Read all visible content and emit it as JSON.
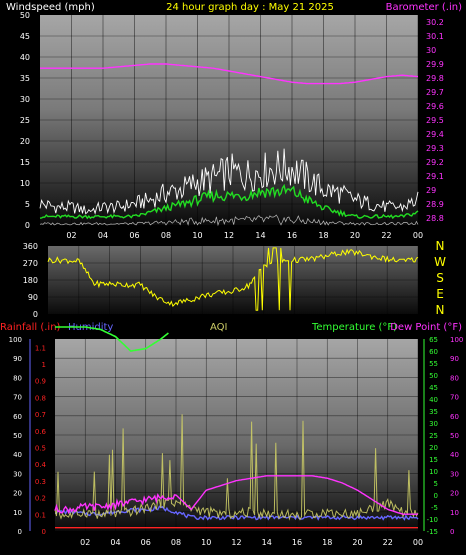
{
  "title": "24 hour graph day : May 21 2025",
  "colors": {
    "background": "#000000",
    "wind_axis": "#ffffff",
    "barometer": "#ff33ff",
    "direction": "#ffff00",
    "rainfall": "#ff2222",
    "humidity": "#6666ff",
    "aqi": "#cccc66",
    "temperature": "#33ff33",
    "dew_point": "#ff33ff",
    "gust": "#ffffff",
    "avg_wind": "#22dd22"
  },
  "chart_data": [
    {
      "type": "line",
      "name": "wind-barometer",
      "left_axis_label": "Windspeed (mph)",
      "right_axis_label": "Barometer (.in)",
      "left_ticks": [
        "50",
        "45",
        "40",
        "35",
        "30",
        "25",
        "20",
        "15",
        "10",
        "5",
        "0"
      ],
      "right_ticks": [
        "30.2",
        "30.1",
        "30",
        "29.9",
        "29.8",
        "29.7",
        "29.6",
        "29.5",
        "29.4",
        "29.3",
        "29.2",
        "29.1",
        "29",
        "28.9",
        "28.8"
      ],
      "x_ticks": [
        "02",
        "04",
        "06",
        "08",
        "10",
        "12",
        "14",
        "16",
        "18",
        "20",
        "22",
        "00"
      ],
      "ylim_left": [
        0,
        50
      ],
      "ylim_right": [
        28.75,
        30.25
      ],
      "hours": [
        0,
        1,
        2,
        3,
        4,
        5,
        6,
        7,
        8,
        9,
        10,
        11,
        12,
        13,
        14,
        15,
        16,
        17,
        18,
        19,
        20,
        21,
        22,
        23,
        24
      ],
      "series": [
        {
          "name": "Barometer",
          "axis": "right",
          "values": [
            29.87,
            29.87,
            29.87,
            29.87,
            29.87,
            29.88,
            29.89,
            29.9,
            29.9,
            29.89,
            29.88,
            29.87,
            29.85,
            29.83,
            29.81,
            29.79,
            29.77,
            29.76,
            29.76,
            29.76,
            29.77,
            29.79,
            29.81,
            29.82,
            29.81
          ]
        },
        {
          "name": "Gust",
          "axis": "left",
          "values": [
            6,
            5,
            5,
            4,
            5,
            5,
            6,
            7,
            9,
            10,
            12,
            13,
            15,
            14,
            15,
            16,
            16,
            13,
            10,
            9,
            7,
            6,
            5,
            5,
            7
          ]
        },
        {
          "name": "Average",
          "axis": "left",
          "values": [
            2,
            2,
            2,
            2,
            2,
            2,
            2,
            3,
            4,
            5,
            6,
            7,
            7,
            7,
            8,
            8,
            8,
            6,
            4,
            3,
            2,
            2,
            2,
            2,
            3
          ]
        }
      ]
    },
    {
      "type": "line",
      "name": "wind-direction",
      "left_ticks": [
        "360",
        "270",
        "180",
        "90",
        "0"
      ],
      "right_ticks": [
        "N",
        "W",
        "S",
        "E",
        "N"
      ],
      "ylim": [
        0,
        360
      ],
      "hours": [
        0,
        1,
        2,
        3,
        4,
        5,
        6,
        7,
        8,
        9,
        10,
        11,
        12,
        13,
        14,
        15,
        16,
        17,
        18,
        19,
        20,
        21,
        22,
        23,
        24
      ],
      "series": [
        {
          "name": "Direction",
          "values": [
            285,
            285,
            280,
            160,
            160,
            155,
            155,
            90,
            55,
            70,
            95,
            110,
            120,
            150,
            260,
            280,
            285,
            290,
            305,
            325,
            325,
            305,
            290,
            280,
            290
          ]
        }
      ]
    },
    {
      "type": "line",
      "name": "rain-humidity-temp",
      "legend": [
        "Rainfall (.in)",
        "Humidity",
        "AQI",
        "Temperature (°F)",
        "Dew Point (°F)"
      ],
      "humidity_ticks": [
        "100",
        "90",
        "80",
        "70",
        "60",
        "50",
        "40",
        "30",
        "20",
        "10",
        "0"
      ],
      "rain_ticks": [
        "1.1",
        "1",
        "0.9",
        "0.8",
        "0.7",
        "0.6",
        "0.5",
        "0.4",
        "0.3",
        "0.2",
        "0.1",
        "0"
      ],
      "temp_ticks": [
        "65",
        "60",
        "55",
        "50",
        "45",
        "40",
        "35",
        "30",
        "25",
        "20",
        "15",
        "10",
        "5",
        "0",
        "-5",
        "-10",
        "-15"
      ],
      "aqi_ticks": [
        "100",
        "90",
        "80",
        "70",
        "60",
        "50",
        "40",
        "30",
        "20",
        "10",
        "0"
      ],
      "ylim_humidity": [
        0,
        100
      ],
      "ylim_rain": [
        0,
        1.15
      ],
      "ylim_temp": [
        -15,
        65
      ],
      "hours": [
        0,
        1,
        2,
        3,
        4,
        5,
        6,
        7,
        8,
        9,
        10,
        11,
        12,
        13,
        14,
        15,
        16,
        17,
        18,
        19,
        20,
        21,
        22,
        23,
        24
      ],
      "series": [
        {
          "name": "Rainfall",
          "axis": "rain",
          "values": [
            0.02,
            0.02,
            0.02,
            0.02,
            0.02,
            0.02,
            0.02,
            0.02,
            0.02,
            0.02,
            0.02,
            0.02,
            0.02,
            0.02,
            0.02,
            0.02,
            0.02,
            0.02,
            0.02,
            0.02,
            0.02,
            0.02,
            0.02,
            0.02,
            0.02
          ]
        },
        {
          "name": "Humidity",
          "axis": "humidity",
          "values": [
            10,
            10,
            9,
            9,
            10,
            11,
            11,
            12,
            10,
            7,
            7,
            7,
            7,
            7,
            7,
            7,
            7,
            7,
            7,
            7,
            7,
            7,
            7,
            7,
            7
          ]
        },
        {
          "name": "Dew Point",
          "axis": "temp",
          "values": [
            -6,
            -6,
            -5,
            -5,
            -4,
            -3,
            -2,
            -1,
            0,
            -6,
            2,
            4,
            6,
            7,
            8,
            8,
            8,
            8,
            7,
            5,
            2,
            -2,
            -6,
            -8,
            -8
          ]
        },
        {
          "name": "AQI",
          "axis": "aqi",
          "values": [
            9,
            8,
            10,
            8,
            9,
            10,
            12,
            14,
            15,
            12,
            10,
            9,
            9,
            10,
            9,
            9,
            8,
            9,
            10,
            9,
            9,
            12,
            14,
            10,
            9
          ]
        },
        {
          "name": "Temperature",
          "axis": "temp",
          "values": [
            70,
            70,
            70,
            69,
            66,
            60,
            61,
            65,
            70,
            70,
            70,
            70,
            70,
            70,
            70,
            70,
            70,
            70,
            70,
            70,
            70,
            70,
            70,
            70,
            70
          ]
        }
      ]
    }
  ]
}
